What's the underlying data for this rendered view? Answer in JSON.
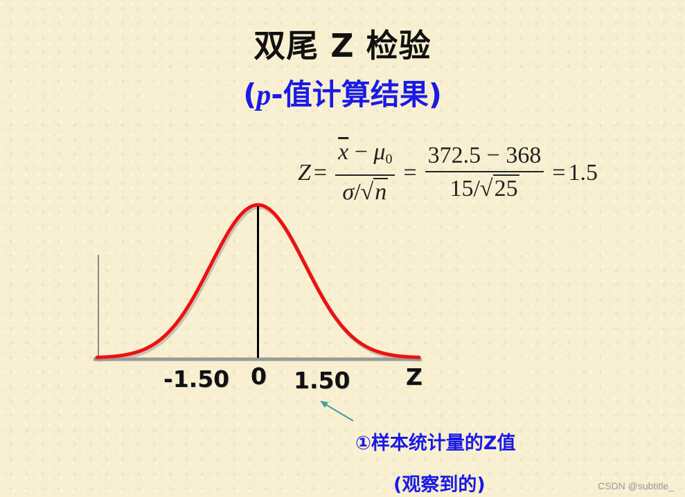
{
  "title": "双尾 Z 检验",
  "subtitle": {
    "open": "(",
    "variable": "p",
    "rest": "-值计算结果",
    "close": ")"
  },
  "formula": {
    "lhs": "Z",
    "equals": "=",
    "frac1_num_var": "x",
    "frac1_num_minus": "−",
    "frac1_num_mu": "μ",
    "frac1_num_mu_sub": "0",
    "frac1_den_sigma": "σ",
    "frac1_den_slash": "/",
    "frac1_den_sqrt_sym": "√",
    "frac1_den_n": "n",
    "frac2_num": "372.5 − 368",
    "frac2_den_value": "15",
    "frac2_den_slash": "/",
    "frac2_den_sqrt_sym": "√",
    "frac2_den_radicand": "25",
    "result": "1.5"
  },
  "axis": {
    "ticks": [
      "-1.50",
      "0",
      "1.50"
    ],
    "tick_values": [
      -1.5,
      0,
      1.5
    ],
    "axis_label": "Z",
    "x_range": [
      -3.4,
      3.4
    ]
  },
  "annotation": {
    "line1": "①样本统计量的Z值",
    "line2": "(观察到的)"
  },
  "colors": {
    "curve": "#ee1111",
    "curve_shadow": "#9a9a9a",
    "annotation": "#1a1ae6",
    "arrow": "#3f9f9f"
  },
  "watermark": "CSDN @subtitle_"
}
